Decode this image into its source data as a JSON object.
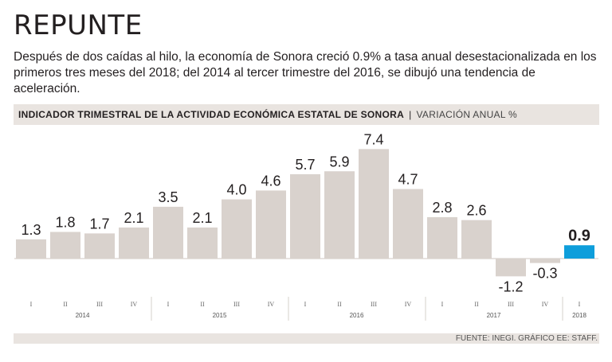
{
  "title": "REPUNTE",
  "subtitle": "Después de dos caídas al hilo, la economía de Sonora creció 0.9% a tasa anual desestacionalizada en los primeros tres meses del 2018; del 2014 al tercer trimestre del 2016, se dibujó una tendencia de aceleración.",
  "chart_header": {
    "main": "INDICADOR TRIMESTRAL DE LA ACTIVIDAD ECONÓMICA ESTATAL DE SONORA",
    "separator": "|",
    "unit": "VARIACIÓN ANUAL %"
  },
  "source": "FUENTE: INEGI. GRÁFICO EE: STAFF.",
  "colors": {
    "bar": "#d9d2cd",
    "highlight": "#0e9edb",
    "text": "#231f20"
  },
  "chart_data": {
    "type": "bar",
    "title": "INDICADOR TRIMESTRAL DE LA ACTIVIDAD ECONÓMICA ESTATAL DE SONORA",
    "ylabel": "VARIACIÓN ANUAL %",
    "xlabel": "",
    "quarters": [
      "I",
      "II",
      "III",
      "IV",
      "I",
      "II",
      "III",
      "IV",
      "I",
      "II",
      "III",
      "IV",
      "I",
      "II",
      "III",
      "IV",
      "I"
    ],
    "years": [
      {
        "label": "2014",
        "count": 4
      },
      {
        "label": "2015",
        "count": 4
      },
      {
        "label": "2016",
        "count": 4
      },
      {
        "label": "2017",
        "count": 4
      },
      {
        "label": "2018",
        "count": 1
      }
    ],
    "values": [
      1.3,
      1.8,
      1.7,
      2.1,
      3.5,
      2.1,
      4.0,
      4.6,
      5.7,
      5.9,
      7.4,
      4.7,
      2.8,
      2.6,
      -1.2,
      -0.3,
      0.9
    ],
    "labels": [
      "1.3",
      "1.8",
      "1.7",
      "2.1",
      "3.5",
      "2.1",
      "4.0",
      "4.6",
      "5.7",
      "5.9",
      "7.4",
      "4.7",
      "2.8",
      "2.6",
      "-1.2",
      "-0.3",
      "0.9"
    ],
    "highlight_index": 16,
    "ylim": [
      -1.5,
      8.0
    ]
  }
}
